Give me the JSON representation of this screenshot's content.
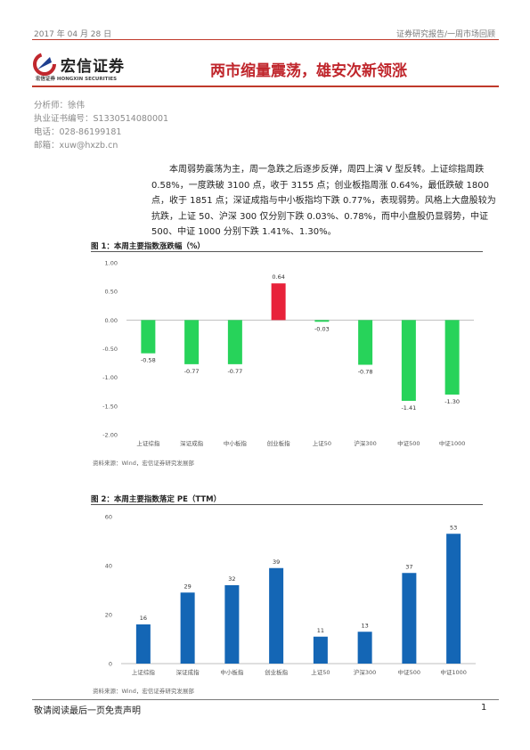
{
  "header": {
    "date": "2017 年 04 月 28 日",
    "category": "证券研究报告/一周市场回顾"
  },
  "logo": {
    "cn": "宏信证券",
    "en": "宏信证券  HONGXIN SECURITIES"
  },
  "title": "两市缩量震荡，雄安次新领涨",
  "analyst": {
    "name": "分析师：徐伟",
    "license": "执业证书编号：S1330514080001",
    "phone": "电话：028-86199181",
    "email": "邮箱：xuw@hxzb.cn"
  },
  "summary": "本周弱势震荡为主，周一急跌之后逐步反弹，周四上演 V 型反转。上证综指周跌 0.58%，一度跌破 3100 点，收于 3155 点；创业板指周涨 0.64%，最低跌破 1800 点，收于 1851 点；深证成指与中小板指均下跌 0.77%，表现弱势。风格上大盘股较为抗跌，上证 50、沪深 300 仅分别下跌 0.03%、0.78%，而中小盘股仍显弱势，中证 500、中证 1000 分别下跌 1.41%、1.30%。",
  "colors": {
    "up": "#e8223a",
    "down": "#27d35a",
    "bar": "#1466b5",
    "brand_red": "#c0272d"
  },
  "figures": [
    {
      "title": "图 1：本周主要指数涨跌幅（%）",
      "source": "资料来源：Wind，宏信证券研究发展部"
    },
    {
      "title": "图 2：本周主要指数落定 PE（TTM）",
      "source": "资料来源：Wind，宏信证券研究发展部"
    }
  ],
  "chart_data": [
    {
      "type": "bar",
      "categories": [
        "上证综指",
        "深证成指",
        "中小板指",
        "创业板指",
        "上证50",
        "沪深300",
        "中证500",
        "中证1000"
      ],
      "values": [
        -0.58,
        -0.77,
        -0.77,
        0.64,
        -0.03,
        -0.78,
        -1.41,
        -1.3
      ],
      "value_labels": [
        "-0.58",
        "-0.77",
        "-0.77",
        "0.64",
        "-0.03",
        "-0.78",
        "-1.41",
        "-1.30"
      ],
      "ylim": [
        -2.0,
        1.0
      ],
      "yticks": [
        "1.00",
        "0.50",
        "0.00",
        "-0.50",
        "-1.00",
        "-1.50",
        "-2.00"
      ],
      "ytick_values": [
        1.0,
        0.5,
        0.0,
        -0.5,
        -1.0,
        -1.5,
        -2.0
      ],
      "grid": false
    },
    {
      "type": "bar",
      "categories": [
        "上证综指",
        "深证成指",
        "中小板指",
        "创业板指",
        "上证50",
        "沪深300",
        "中证500",
        "中证1000"
      ],
      "values": [
        16,
        29,
        32,
        39,
        11,
        13,
        37,
        53
      ],
      "value_labels": [
        "16",
        "29",
        "32",
        "39",
        "11",
        "13",
        "37",
        "53"
      ],
      "ylim": [
        0,
        60
      ],
      "yticks": [
        "60",
        "40",
        "20",
        "0"
      ],
      "ytick_values": [
        60,
        40,
        20,
        0
      ],
      "grid": false
    }
  ],
  "footer": {
    "disclaimer": "敬请阅读最后一页免责声明",
    "page": "1"
  }
}
